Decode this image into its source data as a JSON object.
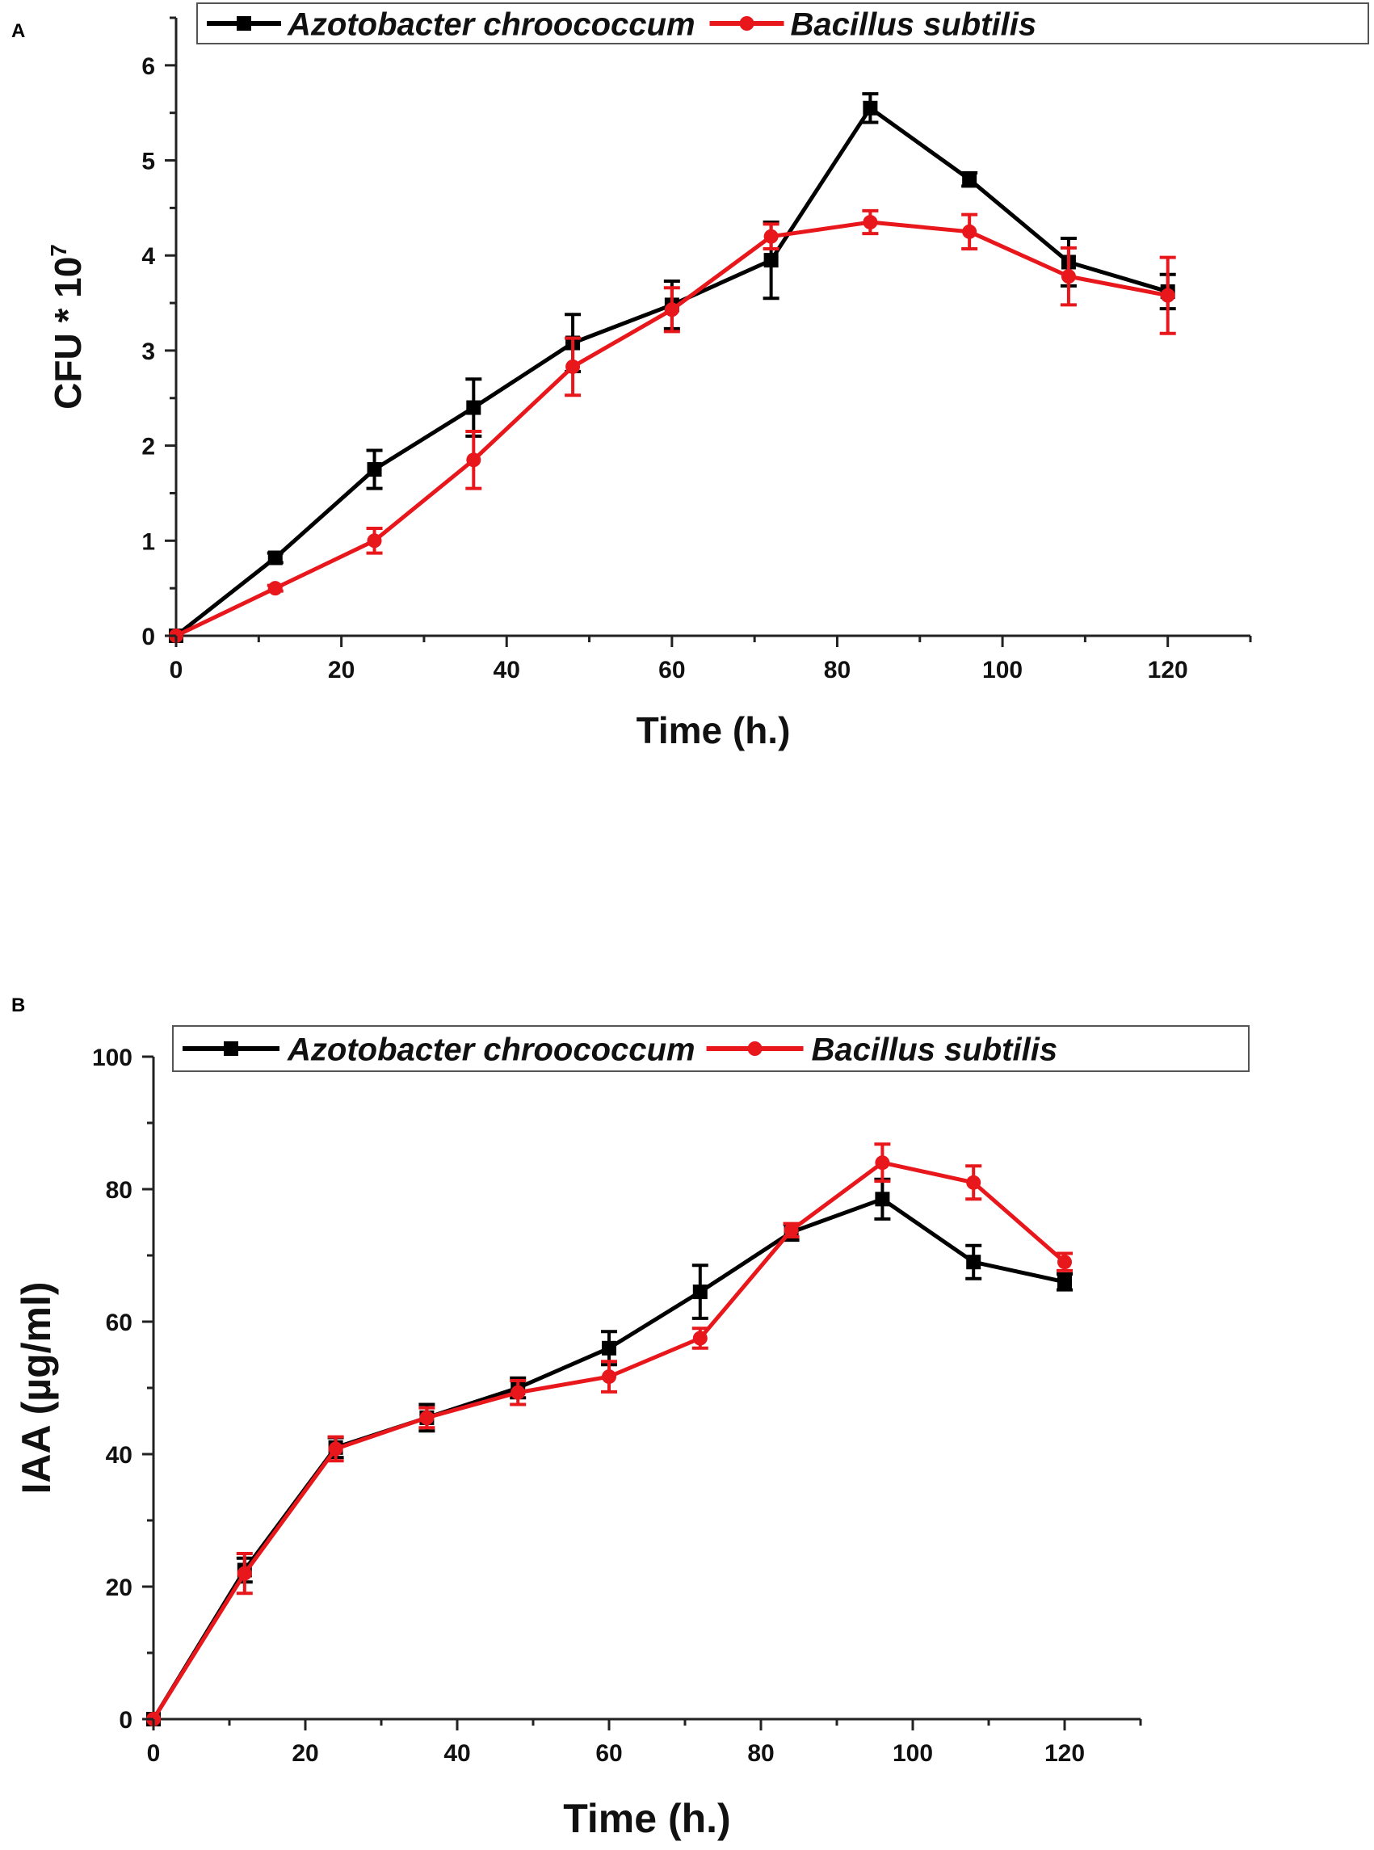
{
  "chart_data": [
    {
      "panel": "A",
      "type": "line",
      "title": "",
      "xlabel": "Time (h.)",
      "ylabel": "CFU * 10",
      "ylabel_exponent": "7",
      "xlim": [
        0,
        130
      ],
      "ylim": [
        0,
        6.5
      ],
      "xticks": [
        0,
        20,
        40,
        60,
        80,
        100,
        120
      ],
      "yticks": [
        0,
        1,
        2,
        3,
        4,
        5,
        6
      ],
      "legend_position": "top",
      "series": [
        {
          "name": "Azotobacter chroococcum",
          "color": "#000000",
          "marker": "square",
          "x": [
            0,
            12,
            24,
            36,
            48,
            60,
            72,
            84,
            96,
            108,
            120
          ],
          "y": [
            0,
            0.82,
            1.75,
            2.4,
            3.08,
            3.48,
            3.95,
            5.55,
            4.8,
            3.93,
            3.62
          ],
          "err": [
            0,
            0.05,
            0.2,
            0.3,
            0.3,
            0.25,
            0.4,
            0.15,
            0.07,
            0.25,
            0.18
          ]
        },
        {
          "name": "Bacillus subtilis",
          "color": "#e8171c",
          "marker": "circle",
          "x": [
            0,
            12,
            24,
            36,
            48,
            60,
            72,
            84,
            96,
            108,
            120
          ],
          "y": [
            0,
            0.5,
            1.0,
            1.85,
            2.83,
            3.43,
            4.2,
            4.35,
            4.25,
            3.78,
            3.58
          ],
          "err": [
            0,
            0.03,
            0.13,
            0.3,
            0.3,
            0.23,
            0.13,
            0.12,
            0.18,
            0.3,
            0.4
          ]
        }
      ]
    },
    {
      "panel": "B",
      "type": "line",
      "title": "",
      "xlabel": "Time (h.)",
      "ylabel": "IAA (µg/ml)",
      "xlim": [
        0,
        130
      ],
      "ylim": [
        0,
        100
      ],
      "xticks": [
        0,
        20,
        40,
        60,
        80,
        100,
        120
      ],
      "yticks": [
        0,
        20,
        40,
        60,
        80,
        100
      ],
      "legend_position": "top",
      "series": [
        {
          "name": "Azotobacter chroococcum",
          "color": "#000000",
          "marker": "square",
          "x": [
            0,
            12,
            24,
            36,
            48,
            60,
            72,
            84,
            96,
            108,
            120
          ],
          "y": [
            0,
            22.5,
            41,
            45.5,
            50,
            56,
            64.5,
            73.5,
            78.5,
            69,
            66
          ],
          "err": [
            0,
            1.8,
            1.5,
            2,
            1.5,
            2.5,
            4,
            1.2,
            3,
            2.5,
            1.2
          ]
        },
        {
          "name": "Bacillus subtilis",
          "color": "#e8171c",
          "marker": "circle",
          "x": [
            0,
            12,
            24,
            36,
            48,
            60,
            72,
            84,
            96,
            108,
            120
          ],
          "y": [
            0,
            22,
            40.8,
            45.5,
            49.3,
            51.7,
            57.5,
            73.8,
            84,
            81,
            69
          ],
          "err": [
            0,
            3,
            1.8,
            1.5,
            1.8,
            2.3,
            1.5,
            1,
            2.8,
            2.5,
            1.3
          ]
        }
      ]
    }
  ]
}
